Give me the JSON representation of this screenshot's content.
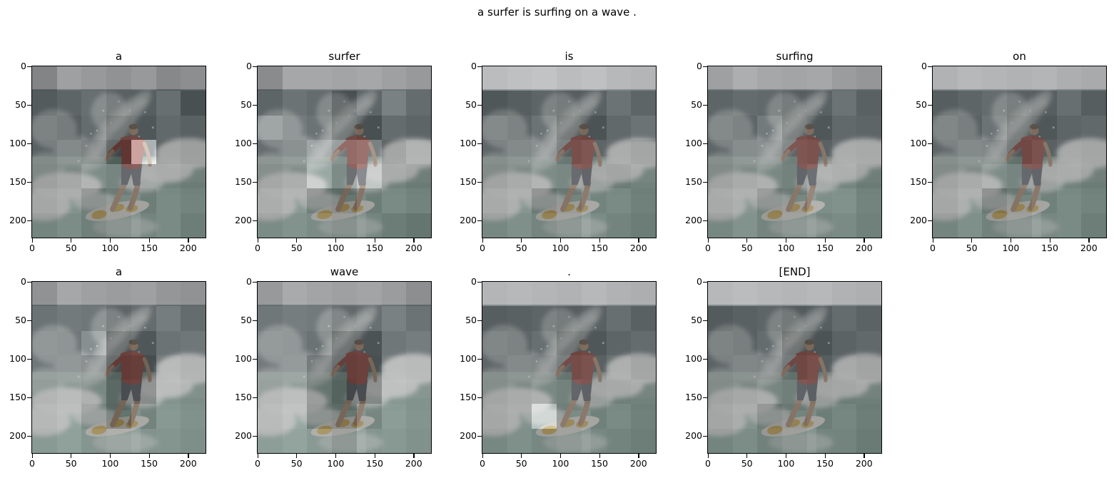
{
  "figure": {
    "suptitle": "a surfer is surfing on a wave .",
    "background_color": "#ffffff",
    "text_color": "#000000"
  },
  "chart_data": {
    "type": "heatmap",
    "title": "a surfer is surfing on a wave .",
    "subplot_grid": {
      "rows": 2,
      "cols": 5,
      "filled": 9
    },
    "axis_range": [
      0,
      224
    ],
    "x_ticks": [
      0,
      50,
      100,
      150,
      200
    ],
    "y_ticks": [
      0,
      50,
      100,
      150,
      200
    ],
    "attention_grid_size": 7,
    "overlay_alpha": 0.55,
    "tokens": [
      "a",
      "surfer",
      "is",
      "surfing",
      "on",
      "a",
      "wave",
      ".",
      "[END]"
    ],
    "attention_maps": [
      {
        "token": "a",
        "grid": [
          [
            0.35,
            0.55,
            0.5,
            0.45,
            0.5,
            0.38,
            0.42
          ],
          [
            0.38,
            0.45,
            0.52,
            0.42,
            0.4,
            0.52,
            0.3
          ],
          [
            0.45,
            0.4,
            0.5,
            0.32,
            0.35,
            0.48,
            0.42
          ],
          [
            0.42,
            0.5,
            0.45,
            0.22,
            1.0,
            0.45,
            0.4
          ],
          [
            0.4,
            0.46,
            0.55,
            0.5,
            0.52,
            0.5,
            0.46
          ],
          [
            0.46,
            0.5,
            0.35,
            0.42,
            0.46,
            0.55,
            0.5
          ],
          [
            0.4,
            0.46,
            0.36,
            0.42,
            0.5,
            0.55,
            0.46
          ]
        ]
      },
      {
        "token": "surfer",
        "grid": [
          [
            0.4,
            0.6,
            0.6,
            0.58,
            0.6,
            0.55,
            0.5
          ],
          [
            0.45,
            0.55,
            0.5,
            0.3,
            0.45,
            0.65,
            0.5
          ],
          [
            0.7,
            0.6,
            0.55,
            0.35,
            0.3,
            0.5,
            0.45
          ],
          [
            0.5,
            0.55,
            0.7,
            0.6,
            0.65,
            0.45,
            0.55
          ],
          [
            0.45,
            0.5,
            0.75,
            0.55,
            0.75,
            0.5,
            0.45
          ],
          [
            0.5,
            0.55,
            0.35,
            0.3,
            0.45,
            0.55,
            0.5
          ],
          [
            0.45,
            0.5,
            0.45,
            0.4,
            0.5,
            0.45,
            0.4
          ]
        ]
      },
      {
        "token": "is",
        "grid": [
          [
            0.75,
            0.78,
            0.8,
            0.75,
            0.78,
            0.72,
            0.7
          ],
          [
            0.35,
            0.4,
            0.45,
            0.4,
            0.42,
            0.55,
            0.45
          ],
          [
            0.5,
            0.45,
            0.55,
            0.35,
            0.32,
            0.48,
            0.55
          ],
          [
            0.45,
            0.5,
            0.55,
            0.4,
            0.45,
            0.5,
            0.45
          ],
          [
            0.42,
            0.48,
            0.55,
            0.52,
            0.48,
            0.45,
            0.5
          ],
          [
            0.48,
            0.52,
            0.32,
            0.4,
            0.5,
            0.55,
            0.48
          ],
          [
            0.42,
            0.48,
            0.4,
            0.45,
            0.55,
            0.5,
            0.45
          ]
        ]
      },
      {
        "token": "surfing",
        "grid": [
          [
            0.55,
            0.65,
            0.6,
            0.58,
            0.6,
            0.52,
            0.48
          ],
          [
            0.45,
            0.5,
            0.48,
            0.4,
            0.42,
            0.55,
            0.42
          ],
          [
            0.5,
            0.45,
            0.6,
            0.4,
            0.35,
            0.48,
            0.45
          ],
          [
            0.45,
            0.52,
            0.55,
            0.45,
            0.42,
            0.5,
            0.48
          ],
          [
            0.42,
            0.48,
            0.52,
            0.48,
            0.55,
            0.52,
            0.45
          ],
          [
            0.48,
            0.52,
            0.38,
            0.42,
            0.58,
            0.6,
            0.5
          ],
          [
            0.42,
            0.5,
            0.4,
            0.45,
            0.52,
            0.55,
            0.48
          ]
        ]
      },
      {
        "token": "on",
        "grid": [
          [
            0.68,
            0.72,
            0.7,
            0.68,
            0.7,
            0.65,
            0.62
          ],
          [
            0.4,
            0.45,
            0.5,
            0.42,
            0.4,
            0.52,
            0.4
          ],
          [
            0.48,
            0.42,
            0.55,
            0.38,
            0.35,
            0.45,
            0.48
          ],
          [
            0.45,
            0.5,
            0.48,
            0.35,
            0.42,
            0.48,
            0.45
          ],
          [
            0.42,
            0.48,
            0.55,
            0.5,
            0.48,
            0.5,
            0.46
          ],
          [
            0.46,
            0.52,
            0.3,
            0.4,
            0.48,
            0.55,
            0.5
          ],
          [
            0.4,
            0.48,
            0.38,
            0.44,
            0.52,
            0.55,
            0.46
          ]
        ]
      },
      {
        "token": "a",
        "grid": [
          [
            0.45,
            0.6,
            0.55,
            0.52,
            0.55,
            0.48,
            0.45
          ],
          [
            0.55,
            0.6,
            0.58,
            0.45,
            0.5,
            0.62,
            0.5
          ],
          [
            0.6,
            0.58,
            0.75,
            0.3,
            0.35,
            0.55,
            0.58
          ],
          [
            0.58,
            0.6,
            0.55,
            0.25,
            0.28,
            0.6,
            0.55
          ],
          [
            0.55,
            0.6,
            0.52,
            0.3,
            0.32,
            0.62,
            0.58
          ],
          [
            0.58,
            0.62,
            0.45,
            0.28,
            0.5,
            0.65,
            0.6
          ],
          [
            0.55,
            0.6,
            0.52,
            0.55,
            0.6,
            0.62,
            0.58
          ]
        ]
      },
      {
        "token": "wave",
        "grid": [
          [
            0.5,
            0.62,
            0.58,
            0.55,
            0.58,
            0.52,
            0.42
          ],
          [
            0.58,
            0.62,
            0.6,
            0.48,
            0.52,
            0.65,
            0.55
          ],
          [
            0.62,
            0.6,
            0.55,
            0.3,
            0.32,
            0.58,
            0.62
          ],
          [
            0.6,
            0.62,
            0.4,
            0.28,
            0.3,
            0.62,
            0.6
          ],
          [
            0.58,
            0.62,
            0.38,
            0.26,
            0.3,
            0.65,
            0.62
          ],
          [
            0.6,
            0.65,
            0.35,
            0.3,
            0.52,
            0.68,
            0.62
          ],
          [
            0.58,
            0.62,
            0.55,
            0.45,
            0.62,
            0.65,
            0.6
          ]
        ]
      },
      {
        "token": ".",
        "grid": [
          [
            0.7,
            0.72,
            0.7,
            0.68,
            0.72,
            0.68,
            0.65
          ],
          [
            0.4,
            0.42,
            0.45,
            0.4,
            0.42,
            0.52,
            0.42
          ],
          [
            0.48,
            0.45,
            0.52,
            0.32,
            0.35,
            0.45,
            0.5
          ],
          [
            0.45,
            0.5,
            0.48,
            0.38,
            0.42,
            0.52,
            0.45
          ],
          [
            0.44,
            0.48,
            0.52,
            0.48,
            0.45,
            0.48,
            0.5
          ],
          [
            0.46,
            0.5,
            0.85,
            0.45,
            0.48,
            0.55,
            0.48
          ],
          [
            0.42,
            0.48,
            0.42,
            0.46,
            0.52,
            0.5,
            0.46
          ]
        ]
      },
      {
        "token": "[END]",
        "grid": [
          [
            0.72,
            0.75,
            0.72,
            0.7,
            0.72,
            0.68,
            0.66
          ],
          [
            0.38,
            0.42,
            0.45,
            0.38,
            0.4,
            0.5,
            0.44
          ],
          [
            0.46,
            0.42,
            0.5,
            0.3,
            0.32,
            0.44,
            0.48
          ],
          [
            0.44,
            0.48,
            0.46,
            0.34,
            0.4,
            0.48,
            0.44
          ],
          [
            0.42,
            0.46,
            0.5,
            0.46,
            0.44,
            0.46,
            0.48
          ],
          [
            0.45,
            0.5,
            0.34,
            0.4,
            0.46,
            0.52,
            0.46
          ],
          [
            0.4,
            0.46,
            0.38,
            0.44,
            0.5,
            0.5,
            0.44
          ]
        ]
      }
    ]
  },
  "scene": {
    "description": "surfer in a red shirt crouching on a white surfboard with yellow markings, riding a breaking wave with white spray over teal water",
    "colors": {
      "sky": "#b3b8bc",
      "ocean_dark": "#46555a",
      "water_mid": "#6e8d84",
      "water_light": "#86a89c",
      "water_deep": "#5f8478",
      "foam": "#e7ebe9",
      "spray": "#cdd7d3",
      "shirt": "#8f332c",
      "shorts": "#454d54",
      "skin": "#ac8464",
      "skin_shade": "#9d7758",
      "hair": "#5c4a39",
      "board": "#d9dad2",
      "board_accent": "#cda43c",
      "axis": "#000000"
    }
  }
}
